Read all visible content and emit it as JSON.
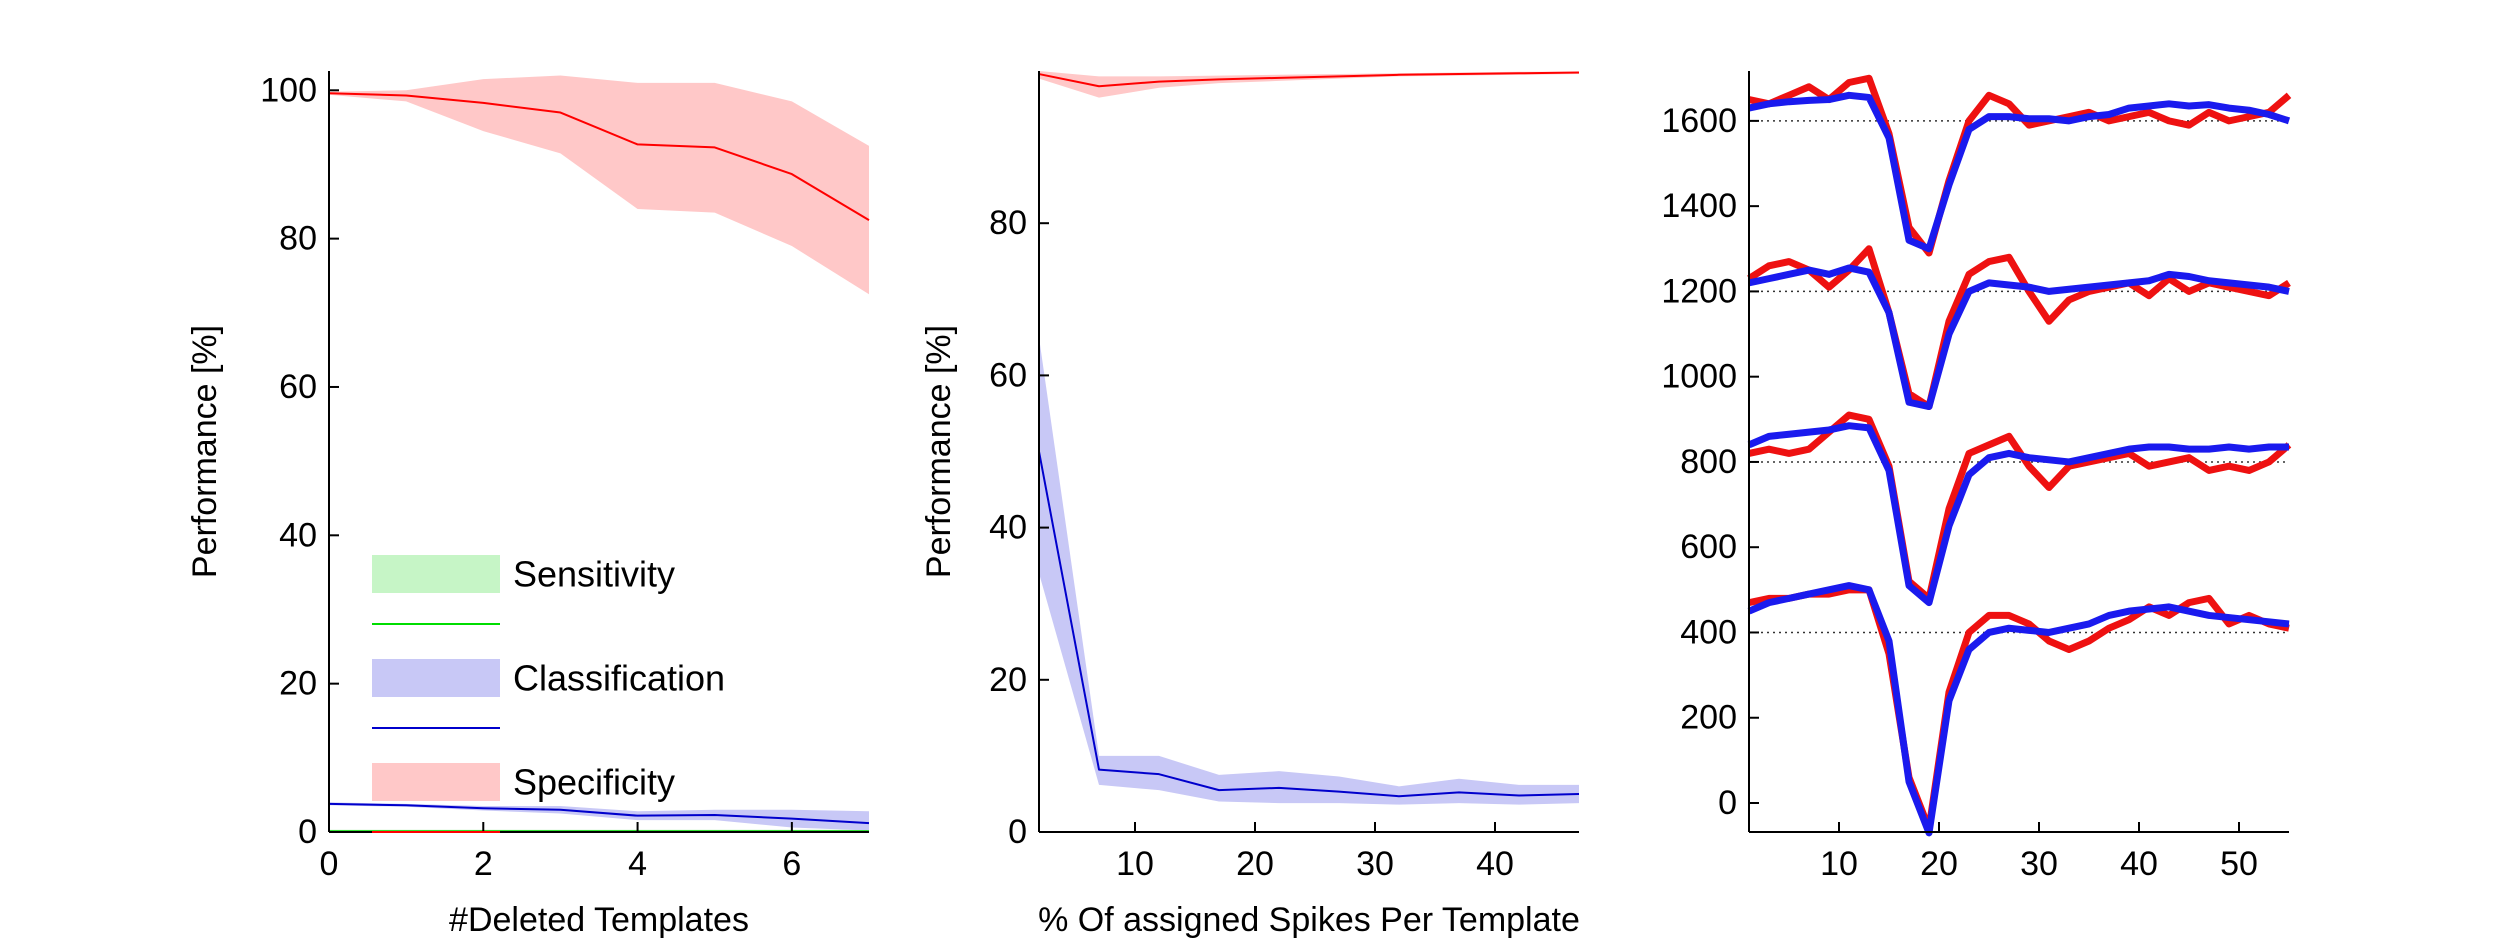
{
  "chart_data": [
    {
      "type": "line",
      "xlabel": "#Deleted Templates",
      "ylabel": "Performance [%]",
      "x": [
        0,
        1,
        2,
        3,
        4,
        5,
        6,
        7
      ],
      "xlim": [
        0,
        7
      ],
      "xticks": [
        0,
        2,
        4,
        6
      ],
      "ylim": [
        0,
        102.6
      ],
      "yticks": [
        0,
        20,
        40,
        60,
        80,
        100
      ],
      "legend": "lower left",
      "series": [
        {
          "name": "Sensitivity",
          "color": "#00dd00",
          "band_color": "#c6f5c6",
          "values": [
            0.1,
            0.1,
            0.1,
            0.1,
            0.1,
            0.1,
            0.1,
            0.1
          ],
          "lower": [
            0,
            0,
            0,
            0,
            0,
            0,
            0,
            0
          ],
          "upper": [
            0.3,
            0.3,
            0.3,
            0.3,
            0.3,
            0.3,
            0.3,
            0.3
          ]
        },
        {
          "name": "Classification",
          "color": "#0000cc",
          "band_color": "#c8c8f6",
          "values": [
            3.8,
            3.6,
            3.2,
            3,
            2.2,
            2.3,
            1.8,
            1.2
          ],
          "lower": [
            3.6,
            3.4,
            2.9,
            2.5,
            1.6,
            1.6,
            0.6,
            0.2
          ],
          "upper": [
            4,
            3.8,
            3.5,
            3.5,
            2.8,
            3,
            3,
            2.8
          ]
        },
        {
          "name": "Specificity",
          "color": "#ff0000",
          "band_color": "#ffc8c8",
          "values": [
            99.6,
            99.3,
            98.3,
            97,
            92.7,
            92.3,
            88.7,
            82.5
          ],
          "lower": [
            99.4,
            98.5,
            94.5,
            91.5,
            84,
            83.5,
            79,
            72.5
          ],
          "upper": [
            99.8,
            100,
            101.5,
            102,
            101,
            101,
            98.5,
            92.5
          ]
        }
      ]
    },
    {
      "type": "line",
      "xlabel": "% Of assigned Spikes Per Template",
      "ylabel": "Performance [%]",
      "x": [
        2,
        7,
        12,
        17,
        22,
        27,
        32,
        37,
        42,
        47
      ],
      "xlim": [
        2,
        47
      ],
      "xticks": [
        10,
        20,
        30,
        40
      ],
      "ylim": [
        0,
        100
      ],
      "yticks": [
        0,
        20,
        40,
        60,
        80
      ],
      "series": [
        {
          "color": "#00dd00",
          "band_color": "#c6f5c6",
          "values": [
            0,
            0,
            0,
            0,
            0,
            0,
            0,
            0,
            0,
            0
          ]
        },
        {
          "color": "#0000cc",
          "band_color": "#c8c8f6",
          "values": [
            50,
            8.2,
            7.6,
            5.5,
            5.8,
            5.3,
            4.7,
            5.2,
            4.8,
            5
          ],
          "lower": [
            34,
            6.2,
            5.5,
            4,
            3.8,
            3.8,
            3.6,
            3.8,
            3.6,
            3.8
          ],
          "upper": [
            65,
            10,
            10,
            7.5,
            8,
            7.3,
            6,
            7,
            6.2,
            6.2
          ]
        },
        {
          "color": "#ff0000",
          "band_color": "#ffc8c8",
          "values": [
            99.6,
            98,
            98.6,
            98.9,
            99.1,
            99.3,
            99.5,
            99.6,
            99.7,
            99.8
          ],
          "lower": [
            99,
            96.5,
            97.8,
            98.4,
            98.7,
            99,
            99.3,
            99.4,
            99.5,
            99.6
          ],
          "upper": [
            100,
            99.3,
            99.3,
            99.4,
            99.5,
            99.6,
            99.7,
            99.8,
            99.9,
            99.9
          ]
        }
      ]
    },
    {
      "type": "line",
      "x": [
        1,
        3,
        5,
        7,
        9,
        11,
        13,
        15,
        17,
        19,
        21,
        23,
        25,
        27,
        29,
        31,
        33,
        35,
        37,
        39,
        41,
        43,
        45,
        47,
        49,
        51,
        53,
        55
      ],
      "xlim": [
        1,
        55
      ],
      "xticks": [
        10,
        20,
        30,
        40,
        50
      ],
      "ylim": [
        -68,
        1717
      ],
      "yticks": [
        0,
        200,
        400,
        600,
        800,
        1000,
        1200,
        1400,
        1600
      ],
      "hlines": [
        400,
        800,
        1200,
        1600
      ],
      "series": [
        {
          "color": "#ee1111",
          "values": [
            1650,
            1640,
            1660,
            1680,
            1650,
            1690,
            1700,
            1570,
            1350,
            1290,
            1460,
            1600,
            1660,
            1640,
            1590,
            1600,
            1610,
            1620,
            1600,
            1610,
            1620,
            1600,
            1590,
            1620,
            1600,
            1610,
            1620,
            1660
          ]
        },
        {
          "color": "#1a1aee",
          "values": [
            1630,
            1640,
            1645,
            1648,
            1650,
            1660,
            1655,
            1560,
            1320,
            1300,
            1450,
            1580,
            1610,
            1610,
            1605,
            1605,
            1600,
            1610,
            1615,
            1630,
            1635,
            1640,
            1635,
            1638,
            1630,
            1625,
            1615,
            1600
          ]
        },
        {
          "color": "#ee1111",
          "values": [
            1230,
            1260,
            1270,
            1250,
            1210,
            1250,
            1300,
            1150,
            960,
            930,
            1130,
            1240,
            1270,
            1280,
            1200,
            1130,
            1180,
            1200,
            1210,
            1220,
            1190,
            1230,
            1200,
            1220,
            1210,
            1200,
            1190,
            1220
          ]
        },
        {
          "color": "#1a1aee",
          "values": [
            1220,
            1230,
            1240,
            1250,
            1240,
            1255,
            1245,
            1150,
            940,
            930,
            1100,
            1200,
            1220,
            1215,
            1210,
            1200,
            1205,
            1210,
            1215,
            1220,
            1225,
            1240,
            1235,
            1225,
            1220,
            1215,
            1210,
            1200
          ]
        },
        {
          "color": "#ee1111",
          "values": [
            820,
            830,
            820,
            830,
            870,
            910,
            900,
            790,
            520,
            480,
            690,
            820,
            840,
            860,
            790,
            740,
            790,
            800,
            810,
            820,
            790,
            800,
            810,
            780,
            790,
            780,
            800,
            840
          ]
        },
        {
          "color": "#1a1aee",
          "values": [
            840,
            860,
            865,
            870,
            875,
            885,
            880,
            780,
            510,
            470,
            650,
            770,
            810,
            820,
            810,
            805,
            800,
            810,
            820,
            830,
            835,
            835,
            830,
            830,
            835,
            830,
            835,
            835
          ]
        },
        {
          "color": "#ee1111",
          "values": [
            470,
            480,
            480,
            490,
            490,
            500,
            500,
            350,
            60,
            -60,
            260,
            400,
            440,
            440,
            420,
            380,
            360,
            380,
            410,
            430,
            460,
            440,
            470,
            480,
            420,
            440,
            420,
            410
          ]
        },
        {
          "color": "#1a1aee",
          "values": [
            450,
            470,
            480,
            490,
            500,
            510,
            500,
            380,
            50,
            -70,
            240,
            360,
            400,
            410,
            405,
            400,
            410,
            420,
            440,
            450,
            455,
            460,
            450,
            440,
            435,
            430,
            425,
            420
          ]
        }
      ]
    }
  ]
}
